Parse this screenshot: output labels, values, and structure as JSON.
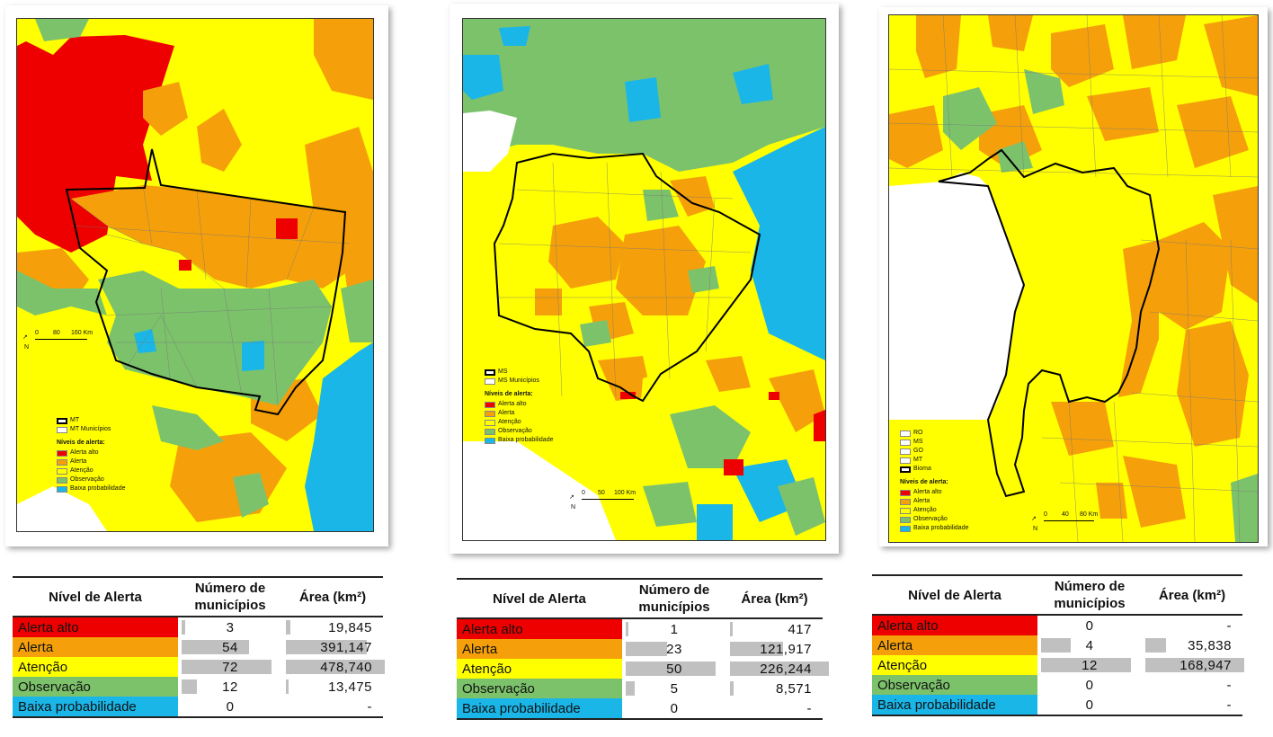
{
  "colors": {
    "alerta_alto": "#ee0000",
    "alerta": "#f5a00a",
    "atencao": "#ffff00",
    "observacao": "#7cc26b",
    "baixa": "#1ab6e8"
  },
  "maps": [
    {
      "id": "mt",
      "legend": {
        "boundary_label": "MT",
        "municipios_label": "MT Municípios",
        "title": "Níveis de alerta:",
        "items": [
          "Alerta alto",
          "Alerta",
          "Atenção",
          "Observação",
          "Baixa probabilidade"
        ]
      },
      "scale": {
        "north": "N",
        "ticks": [
          "0",
          "80",
          "160 Km"
        ]
      }
    },
    {
      "id": "ms",
      "legend": {
        "boundary_label": "MS",
        "municipios_label": "MS Municípios",
        "title": "Níveis de alerta:",
        "items": [
          "Alerta alto",
          "Alerta",
          "Atenção",
          "Observação",
          "Baixa probabilidade"
        ]
      },
      "scale": {
        "north": "N",
        "ticks": [
          "0",
          "50",
          "100 Km"
        ]
      }
    },
    {
      "id": "bioma",
      "legend": {
        "states": [
          "RO",
          "MS",
          "GO",
          "MT"
        ],
        "boundary_label": "Bioma",
        "title": "Níveis de alerta:",
        "items": [
          "Alerta alto",
          "Alerta",
          "Atenção",
          "Observação",
          "Baixa probabilidade"
        ]
      },
      "scale": {
        "north": "N",
        "ticks": [
          "0",
          "40",
          "80 Km"
        ]
      }
    }
  ],
  "tables": [
    {
      "headers": [
        "Nível de Alerta",
        "Número de municípios",
        "Área (km²)"
      ],
      "rows": [
        {
          "level": "Alerta alto",
          "count": "3",
          "count_value": 3,
          "area": "19,845",
          "area_value": 19845
        },
        {
          "level": "Alerta",
          "count": "54",
          "count_value": 54,
          "area": "391,147",
          "area_value": 391147
        },
        {
          "level": "Atenção",
          "count": "72",
          "count_value": 72,
          "area": "478,740",
          "area_value": 478740
        },
        {
          "level": "Observação",
          "count": "12",
          "count_value": 12,
          "area": "13,475",
          "area_value": 13475
        },
        {
          "level": "Baixa probabilidade",
          "count": "0",
          "count_value": 0,
          "area": "-",
          "area_value": 0
        }
      ]
    },
    {
      "headers": [
        "Nível de Alerta",
        "Número de municípios",
        "Área (km²)"
      ],
      "rows": [
        {
          "level": "Alerta alto",
          "count": "1",
          "count_value": 1,
          "area": "417",
          "area_value": 417
        },
        {
          "level": "Alerta",
          "count": "23",
          "count_value": 23,
          "area": "121,917",
          "area_value": 121917
        },
        {
          "level": "Atenção",
          "count": "50",
          "count_value": 50,
          "area": "226,244",
          "area_value": 226244
        },
        {
          "level": "Observação",
          "count": "5",
          "count_value": 5,
          "area": "8,571",
          "area_value": 8571
        },
        {
          "level": "Baixa probabilidade",
          "count": "0",
          "count_value": 0,
          "area": "-",
          "area_value": 0
        }
      ]
    },
    {
      "headers": [
        "Nível de Alerta",
        "Número de municípios",
        "Área (km²)"
      ],
      "rows": [
        {
          "level": "Alerta alto",
          "count": "0",
          "count_value": 0,
          "area": "-",
          "area_value": 0
        },
        {
          "level": "Alerta",
          "count": "4",
          "count_value": 4,
          "area": "35,838",
          "area_value": 35838
        },
        {
          "level": "Atenção",
          "count": "12",
          "count_value": 12,
          "area": "168,947",
          "area_value": 168947
        },
        {
          "level": "Observação",
          "count": "0",
          "count_value": 0,
          "area": "-",
          "area_value": 0
        },
        {
          "level": "Baixa probabilidade",
          "count": "0",
          "count_value": 0,
          "area": "-",
          "area_value": 0
        }
      ]
    }
  ]
}
